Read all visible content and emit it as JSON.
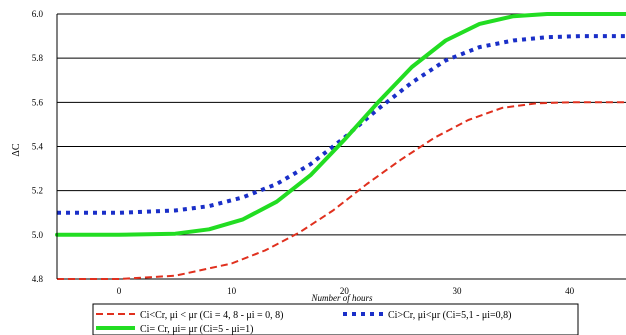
{
  "chart_data": {
    "type": "line",
    "title": "",
    "xlabel": "Number of hours",
    "ylabel": "ΔC",
    "xlim": [
      -5.5,
      45
    ],
    "ylim": [
      4.8,
      6.0
    ],
    "x_ticks": [
      0,
      10,
      20,
      30,
      40
    ],
    "y_ticks": [
      4.8,
      5.0,
      5.2,
      5.4,
      5.6,
      5.8,
      6.0
    ],
    "x_tick_labels": [
      "0",
      "10",
      "20",
      "30",
      "40"
    ],
    "y_tick_labels": [
      "4.8",
      "5.0",
      "5.2",
      "5.4",
      "5.6",
      "5.8",
      "6.0"
    ],
    "grid": "horizontal",
    "legend_position": "bottom",
    "series": [
      {
        "name": "Ci<Cr, μi < μr (Ci = 4, 8 - μi = 0, 8)",
        "color": "#e0301e",
        "style": "dashed",
        "x": [
          -5.5,
          0,
          5,
          10,
          13,
          16,
          19,
          22,
          25,
          28,
          31,
          34,
          37,
          40,
          45
        ],
        "y": [
          4.8,
          4.8,
          4.815,
          4.87,
          4.93,
          5.01,
          5.11,
          5.23,
          5.34,
          5.44,
          5.52,
          5.575,
          5.595,
          5.6,
          5.6
        ]
      },
      {
        "name": "Ci>Cr, μi<μr (Ci=5,1 - μi=0,8)",
        "color": "#1a2fc8",
        "style": "dotted",
        "x": [
          -5.5,
          0,
          5,
          8,
          11,
          14,
          17,
          20,
          23,
          26,
          29,
          32,
          35,
          38,
          41,
          45
        ],
        "y": [
          5.1,
          5.1,
          5.11,
          5.13,
          5.17,
          5.23,
          5.32,
          5.44,
          5.57,
          5.69,
          5.79,
          5.85,
          5.88,
          5.895,
          5.9,
          5.9
        ]
      },
      {
        "name": "Ci= Cr, μi= μr (Ci=5 - μi=1)",
        "color": "#22dd22",
        "style": "solid",
        "x": [
          -5.5,
          0,
          5,
          8,
          11,
          14,
          17,
          20,
          23,
          26,
          29,
          32,
          35,
          38,
          41,
          45
        ],
        "y": [
          5.0,
          5.0,
          5.005,
          5.025,
          5.07,
          5.15,
          5.27,
          5.43,
          5.6,
          5.76,
          5.88,
          5.955,
          5.99,
          6.0,
          6.0,
          6.0
        ]
      }
    ]
  }
}
